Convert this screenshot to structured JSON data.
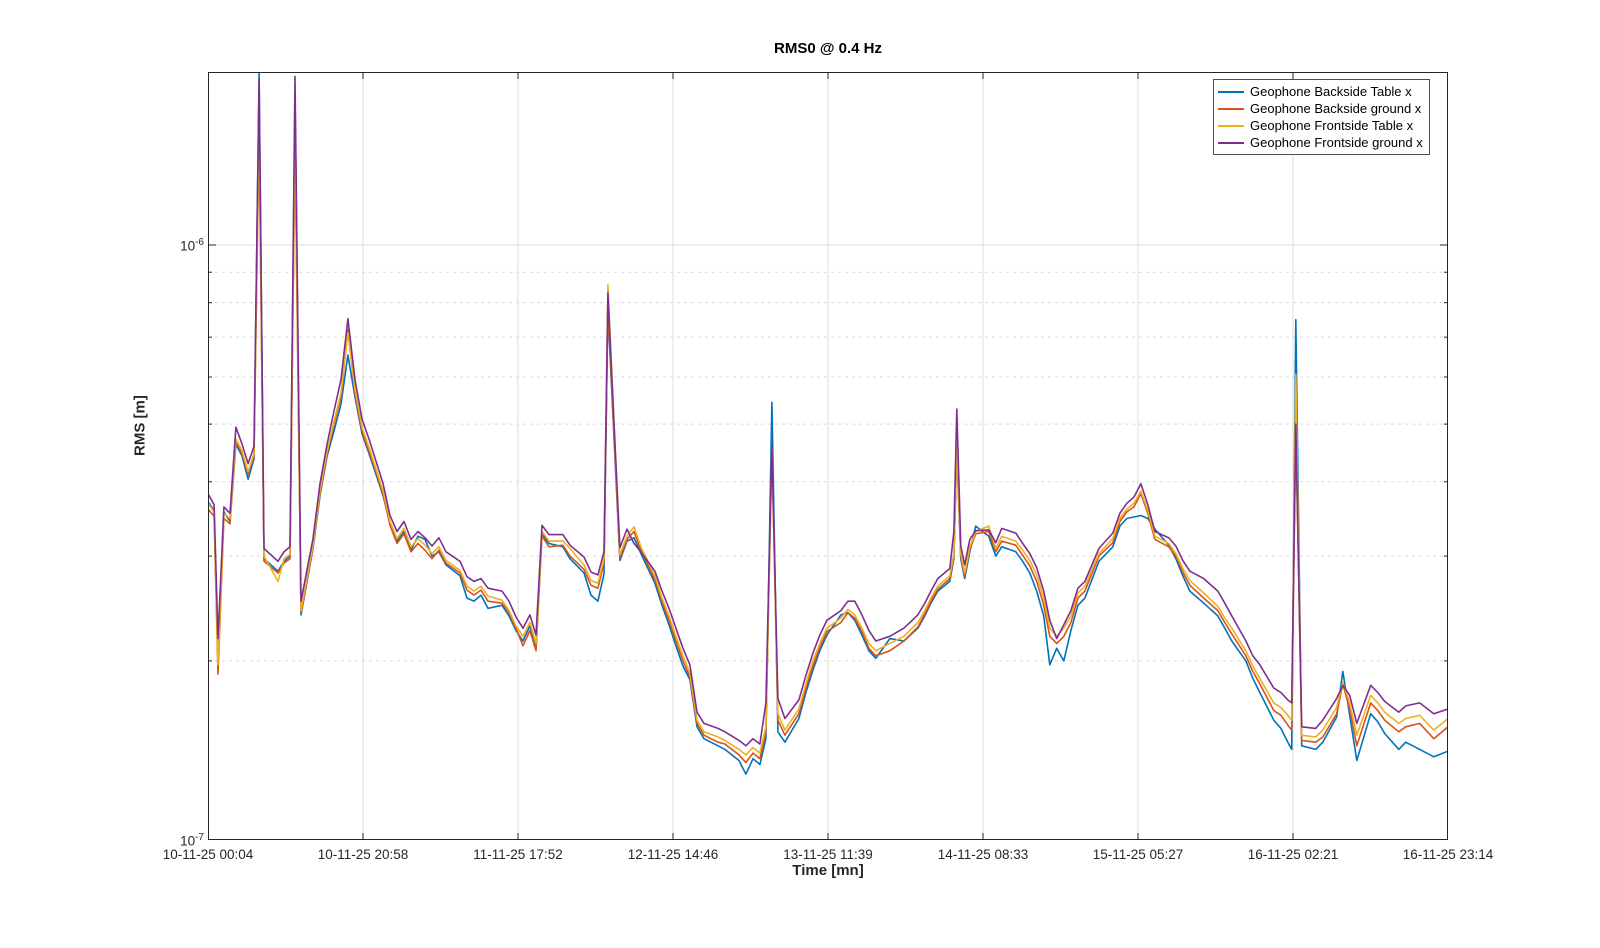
{
  "title": "RMS0 @ 0.4 Hz",
  "chart_data": {
    "type": "line",
    "title": "RMS0 @ 0.4 Hz",
    "xlabel": "Time [mn]",
    "ylabel": "RMS [m]",
    "y_scale": "log",
    "ylim_m": [
      1e-07,
      1.953e-06
    ],
    "grid": "on",
    "legend_position": "top-right",
    "x_tick_labels": [
      "10-11-25 00:04",
      "10-11-25 20:58",
      "11-11-25 17:52",
      "12-11-25 14:46",
      "13-11-25 11:39",
      "14-11-25 08:33",
      "15-11-25 05:27",
      "16-11-25 02:21",
      "16-11-25 23:14"
    ],
    "y_tick_labels": [
      {
        "base": "10",
        "exp": "-6",
        "value_m": 1e-06
      },
      {
        "base": "10",
        "exp": "-7",
        "value_m": 1e-07
      }
    ],
    "y_minor_grid_values_m": [
      2e-07,
      3e-07,
      4e-07,
      5e-07,
      6e-07,
      7e-07,
      8e-07,
      9e-07
    ],
    "x_total_minutes": 10030,
    "value_unit_m": 1e-07,
    "t_minutes": [
      0,
      49,
      81,
      129,
      178,
      226,
      275,
      324,
      372,
      413,
      453,
      566,
      615,
      663,
      704,
      752,
      849,
      906,
      963,
      1019,
      1076,
      1132,
      1189,
      1246,
      1302,
      1416,
      1472,
      1529,
      1585,
      1642,
      1699,
      1755,
      1812,
      1868,
      1925,
      2038,
      2095,
      2151,
      2208,
      2265,
      2378,
      2435,
      2491,
      2548,
      2604,
      2653,
      2702,
      2758,
      2871,
      2928,
      3041,
      3098,
      3154,
      3203,
      3235,
      3332,
      3389,
      3446,
      3502,
      3615,
      3672,
      3729,
      3785,
      3842,
      3898,
      3955,
      4012,
      4125,
      4181,
      4295,
      4351,
      4408,
      4464,
      4513,
      4561,
      4610,
      4666,
      4780,
      4836,
      4893,
      4949,
      5006,
      5119,
      5176,
      5232,
      5289,
      5346,
      5402,
      5515,
      5629,
      5742,
      5798,
      5847,
      5903,
      6000,
      6033,
      6057,
      6089,
      6121,
      6162,
      6210,
      6315,
      6372,
      6420,
      6534,
      6590,
      6647,
      6703,
      6760,
      6809,
      6865,
      6922,
      6980,
      7036,
      7093,
      7206,
      7319,
      7376,
      7432,
      7489,
      7546,
      7602,
      7659,
      7772,
      7829,
      7885,
      7942,
      8055,
      8168,
      8225,
      8281,
      8395,
      8451,
      8508,
      8621,
      8678,
      8734,
      8766,
      8799,
      8847,
      8960,
      9017,
      9130,
      9179,
      9235,
      9292,
      9405,
      9462,
      9518,
      9632,
      9688,
      9801,
      9915,
      10030
    ],
    "series": [
      {
        "name": "Geophone Backside Table x",
        "color": "#0072BD",
        "values": [
          3.7,
          3.58,
          2.0,
          3.56,
          3.43,
          4.63,
          4.42,
          4.04,
          4.37,
          19.5,
          2.97,
          2.83,
          2.94,
          3.0,
          18.0,
          2.39,
          3.09,
          3.79,
          4.42,
          4.87,
          5.4,
          6.53,
          5.55,
          4.82,
          4.46,
          3.79,
          3.4,
          3.18,
          3.3,
          3.07,
          3.24,
          3.2,
          3.0,
          3.05,
          2.9,
          2.78,
          2.55,
          2.52,
          2.58,
          2.45,
          2.48,
          2.38,
          2.25,
          2.16,
          2.29,
          2.1,
          3.27,
          3.15,
          3.11,
          2.97,
          2.81,
          2.58,
          2.52,
          2.8,
          7.79,
          2.95,
          3.18,
          3.22,
          3.03,
          2.7,
          2.48,
          2.3,
          2.12,
          1.96,
          1.86,
          1.55,
          1.48,
          1.44,
          1.42,
          1.36,
          1.29,
          1.37,
          1.34,
          1.48,
          5.44,
          1.52,
          1.46,
          1.6,
          1.77,
          1.93,
          2.08,
          2.21,
          2.39,
          2.41,
          2.34,
          2.21,
          2.08,
          2.02,
          2.18,
          2.16,
          2.27,
          2.38,
          2.5,
          2.62,
          2.72,
          2.97,
          4.54,
          2.97,
          2.75,
          3.05,
          3.37,
          3.24,
          3.0,
          3.11,
          3.05,
          2.94,
          2.81,
          2.62,
          2.38,
          1.97,
          2.1,
          2.0,
          2.25,
          2.48,
          2.55,
          2.94,
          3.11,
          3.37,
          3.47,
          3.49,
          3.51,
          3.47,
          3.33,
          3.13,
          2.97,
          2.78,
          2.62,
          2.5,
          2.38,
          2.27,
          2.16,
          2.0,
          1.87,
          1.77,
          1.59,
          1.54,
          1.46,
          1.42,
          7.49,
          1.44,
          1.42,
          1.46,
          1.61,
          1.92,
          1.62,
          1.36,
          1.63,
          1.58,
          1.51,
          1.42,
          1.46,
          1.42,
          1.38,
          1.41
        ]
      },
      {
        "name": "Geophone Backside ground x",
        "color": "#D95319",
        "values": [
          3.6,
          3.5,
          1.9,
          3.47,
          3.4,
          4.68,
          4.46,
          4.12,
          4.42,
          15.5,
          2.94,
          2.81,
          2.92,
          2.97,
          14.6,
          2.41,
          3.11,
          3.82,
          4.46,
          5.0,
          5.55,
          7.21,
          5.64,
          4.87,
          4.51,
          3.82,
          3.38,
          3.15,
          3.27,
          3.05,
          3.15,
          3.07,
          2.97,
          3.07,
          2.92,
          2.81,
          2.63,
          2.58,
          2.63,
          2.52,
          2.5,
          2.41,
          2.27,
          2.12,
          2.25,
          2.08,
          3.24,
          3.11,
          3.13,
          3.0,
          2.85,
          2.68,
          2.65,
          2.92,
          7.93,
          2.98,
          3.2,
          3.3,
          3.07,
          2.74,
          2.52,
          2.34,
          2.16,
          2.0,
          1.88,
          1.57,
          1.5,
          1.46,
          1.45,
          1.39,
          1.35,
          1.4,
          1.37,
          1.52,
          4.59,
          1.59,
          1.5,
          1.63,
          1.8,
          1.96,
          2.11,
          2.24,
          2.32,
          2.41,
          2.36,
          2.24,
          2.1,
          2.04,
          2.08,
          2.16,
          2.28,
          2.4,
          2.52,
          2.64,
          2.75,
          3.0,
          4.54,
          3.0,
          2.78,
          3.08,
          3.27,
          3.3,
          3.05,
          3.18,
          3.13,
          3.01,
          2.89,
          2.72,
          2.48,
          2.2,
          2.14,
          2.2,
          2.32,
          2.55,
          2.62,
          3.0,
          3.16,
          3.43,
          3.56,
          3.63,
          3.82,
          3.54,
          3.2,
          3.11,
          3.0,
          2.82,
          2.68,
          2.55,
          2.43,
          2.32,
          2.22,
          2.04,
          1.92,
          1.83,
          1.65,
          1.62,
          1.56,
          1.53,
          5.0,
          1.47,
          1.46,
          1.49,
          1.63,
          1.83,
          1.66,
          1.44,
          1.7,
          1.65,
          1.59,
          1.52,
          1.55,
          1.57,
          1.48,
          1.55
        ]
      },
      {
        "name": "Geophone Frontside Table x",
        "color": "#EDB120",
        "values": [
          3.68,
          3.56,
          1.97,
          3.54,
          3.47,
          4.72,
          4.51,
          4.16,
          4.46,
          16.0,
          3.0,
          2.72,
          2.97,
          3.02,
          15.5,
          2.43,
          3.13,
          3.86,
          4.51,
          5.05,
          5.64,
          7.12,
          5.72,
          4.94,
          4.57,
          3.86,
          3.43,
          3.21,
          3.34,
          3.11,
          3.21,
          3.13,
          3.03,
          3.11,
          2.95,
          2.84,
          2.67,
          2.62,
          2.67,
          2.57,
          2.53,
          2.43,
          2.29,
          2.2,
          2.32,
          2.14,
          3.3,
          3.18,
          3.18,
          3.09,
          2.9,
          2.73,
          2.7,
          2.97,
          8.57,
          3.02,
          3.24,
          3.36,
          3.11,
          2.78,
          2.55,
          2.38,
          2.2,
          2.04,
          1.91,
          1.59,
          1.52,
          1.49,
          1.47,
          1.42,
          1.39,
          1.43,
          1.4,
          1.55,
          4.54,
          1.63,
          1.53,
          1.66,
          1.83,
          2.0,
          2.14,
          2.27,
          2.36,
          2.44,
          2.39,
          2.27,
          2.14,
          2.08,
          2.14,
          2.2,
          2.32,
          2.43,
          2.55,
          2.67,
          2.78,
          3.03,
          4.63,
          3.03,
          2.81,
          3.11,
          3.3,
          3.37,
          3.09,
          3.24,
          3.18,
          3.07,
          2.95,
          2.79,
          2.55,
          2.27,
          2.2,
          2.27,
          2.38,
          2.6,
          2.67,
          3.03,
          3.21,
          3.47,
          3.6,
          3.68,
          3.86,
          3.58,
          3.24,
          3.15,
          3.03,
          2.86,
          2.73,
          2.6,
          2.47,
          2.36,
          2.27,
          2.08,
          1.96,
          1.87,
          1.7,
          1.67,
          1.62,
          1.59,
          6.06,
          1.5,
          1.49,
          1.53,
          1.67,
          1.84,
          1.7,
          1.5,
          1.75,
          1.7,
          1.64,
          1.57,
          1.6,
          1.62,
          1.53,
          1.6
        ]
      },
      {
        "name": "Geophone Frontside ground x",
        "color": "#7E2F8E",
        "values": [
          3.82,
          3.66,
          2.18,
          3.63,
          3.54,
          4.94,
          4.63,
          4.29,
          4.59,
          19.0,
          3.09,
          2.94,
          3.05,
          3.11,
          19.2,
          2.52,
          3.21,
          3.97,
          4.63,
          5.26,
          5.94,
          7.52,
          5.94,
          5.1,
          4.72,
          3.97,
          3.51,
          3.3,
          3.43,
          3.2,
          3.3,
          3.22,
          3.12,
          3.22,
          3.05,
          2.94,
          2.77,
          2.72,
          2.75,
          2.65,
          2.62,
          2.52,
          2.37,
          2.27,
          2.39,
          2.21,
          3.38,
          3.26,
          3.26,
          3.13,
          2.99,
          2.82,
          2.79,
          3.05,
          8.3,
          3.1,
          3.33,
          3.15,
          3.05,
          2.83,
          2.62,
          2.45,
          2.27,
          2.1,
          1.97,
          1.64,
          1.57,
          1.54,
          1.52,
          1.47,
          1.44,
          1.48,
          1.45,
          1.7,
          4.59,
          1.73,
          1.6,
          1.72,
          1.89,
          2.06,
          2.21,
          2.34,
          2.43,
          2.52,
          2.52,
          2.39,
          2.25,
          2.16,
          2.2,
          2.27,
          2.39,
          2.5,
          2.62,
          2.75,
          2.86,
          3.3,
          5.3,
          3.12,
          2.9,
          3.2,
          3.31,
          3.32,
          3.16,
          3.34,
          3.28,
          3.15,
          3.03,
          2.87,
          2.62,
          2.34,
          2.18,
          2.3,
          2.43,
          2.65,
          2.72,
          3.09,
          3.28,
          3.54,
          3.68,
          3.77,
          3.97,
          3.66,
          3.3,
          3.22,
          3.12,
          2.95,
          2.83,
          2.75,
          2.62,
          2.5,
          2.38,
          2.16,
          2.04,
          1.97,
          1.8,
          1.77,
          1.72,
          1.7,
          5.0,
          1.55,
          1.54,
          1.59,
          1.73,
          1.82,
          1.75,
          1.57,
          1.82,
          1.77,
          1.71,
          1.64,
          1.68,
          1.7,
          1.63,
          1.66
        ]
      }
    ]
  },
  "style_colors": {
    "axis": "#262626",
    "major_grid": "#dcdcdc",
    "minor_grid": "#d9d9d9",
    "background": "#ffffff"
  }
}
